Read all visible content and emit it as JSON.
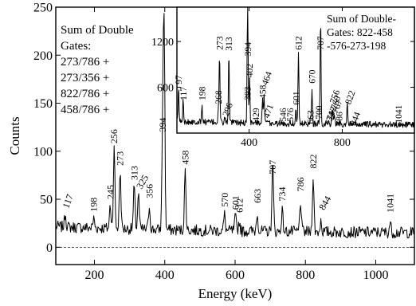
{
  "chart_data": [
    {
      "type": "line",
      "xlabel": "Energy (keV)",
      "ylabel": "Counts",
      "xlim": [
        90,
        1110
      ],
      "ylim": [
        -18,
        250
      ],
      "xticks": [
        200,
        400,
        600,
        800,
        1000
      ],
      "yticks": [
        0,
        50,
        100,
        150,
        200,
        250
      ],
      "legend_lines": [
        "Sum of Double",
        "Gates:",
        "273/786 +",
        "273/356 +",
        "822/786 +",
        "458/786 +"
      ],
      "baseline": 18,
      "noise": 6,
      "peaks": [
        {
          "x": 117,
          "y": 32
        },
        {
          "x": 198,
          "y": 28
        },
        {
          "x": 245,
          "y": 42
        },
        {
          "x": 256,
          "y": 101
        },
        {
          "x": 273,
          "y": 78
        },
        {
          "x": 313,
          "y": 62
        },
        {
          "x": 325,
          "y": 55
        },
        {
          "x": 356,
          "y": 43
        },
        {
          "x": 394,
          "y": 113
        },
        {
          "x": 398,
          "y": 228
        },
        {
          "x": 458,
          "y": 79
        },
        {
          "x": 570,
          "y": 35
        },
        {
          "x": 601,
          "y": 32
        },
        {
          "x": 612,
          "y": 28
        },
        {
          "x": 663,
          "y": 38
        },
        {
          "x": 707,
          "y": 90
        },
        {
          "x": 734,
          "y": 40
        },
        {
          "x": 786,
          "y": 50
        },
        {
          "x": 822,
          "y": 74
        },
        {
          "x": 844,
          "y": 30
        },
        {
          "x": 1041,
          "y": 28
        }
      ],
      "labels": [
        {
          "text": "117",
          "x": 117,
          "y": 40,
          "rotate": -70
        },
        {
          "text": "198",
          "x": 198,
          "y": 37,
          "rotate": -90
        },
        {
          "text": "245",
          "x": 245,
          "y": 50,
          "rotate": -90
        },
        {
          "text": "256",
          "x": 256,
          "y": 108,
          "rotate": -90
        },
        {
          "text": "273",
          "x": 273,
          "y": 85,
          "rotate": -90
        },
        {
          "text": "313",
          "x": 313,
          "y": 70,
          "rotate": -90
        },
        {
          "text": "325",
          "x": 325,
          "y": 60,
          "rotate": -60
        },
        {
          "text": "356",
          "x": 356,
          "y": 51,
          "rotate": -90
        },
        {
          "text": "394",
          "x": 394,
          "y": 120,
          "rotate": -90
        },
        {
          "text": "458",
          "x": 458,
          "y": 86,
          "rotate": -90
        },
        {
          "text": "570",
          "x": 570,
          "y": 42,
          "rotate": -90
        },
        {
          "text": "601",
          "x": 601,
          "y": 39,
          "rotate": -90
        },
        {
          "text": "612",
          "x": 612,
          "y": 36,
          "rotate": -90
        },
        {
          "text": "663",
          "x": 663,
          "y": 46,
          "rotate": -90
        },
        {
          "text": "707",
          "x": 707,
          "y": 76,
          "rotate": -90
        },
        {
          "text": "734",
          "x": 734,
          "y": 48,
          "rotate": -90
        },
        {
          "text": "786",
          "x": 786,
          "y": 58,
          "rotate": -90
        },
        {
          "text": "822",
          "x": 822,
          "y": 82,
          "rotate": -90
        },
        {
          "text": "844",
          "x": 844,
          "y": 38,
          "rotate": -60
        },
        {
          "text": "1041",
          "x": 1041,
          "y": 36,
          "rotate": -90
        }
      ]
    },
    {
      "type": "line",
      "xlim": [
        90,
        1110
      ],
      "ylim": [
        0,
        1650
      ],
      "xticks": [
        400,
        800
      ],
      "xtick_labels": [
        "400",
        "800"
      ],
      "yticks": [
        600,
        1200
      ],
      "legend_lines": [
        "Sum of Double-",
        "Gates: 822-458",
        "-576-273-198"
      ],
      "baseline": 130,
      "noise": 40,
      "peaks": [
        {
          "x": 97,
          "y": 560
        },
        {
          "x": 117,
          "y": 420
        },
        {
          "x": 198,
          "y": 330
        },
        {
          "x": 268,
          "y": 300
        },
        {
          "x": 273,
          "y": 1010
        },
        {
          "x": 296,
          "y": 200
        },
        {
          "x": 313,
          "y": 1060
        },
        {
          "x": 393,
          "y": 500
        },
        {
          "x": 394,
          "y": 1510
        },
        {
          "x": 402,
          "y": 700
        },
        {
          "x": 429,
          "y": 140
        },
        {
          "x": 458,
          "y": 420
        },
        {
          "x": 464,
          "y": 500
        },
        {
          "x": 471,
          "y": 160
        },
        {
          "x": 546,
          "y": 120
        },
        {
          "x": 576,
          "y": 150
        },
        {
          "x": 601,
          "y": 340
        },
        {
          "x": 612,
          "y": 1040
        },
        {
          "x": 663,
          "y": 200
        },
        {
          "x": 670,
          "y": 620
        },
        {
          "x": 700,
          "y": 160
        },
        {
          "x": 707,
          "y": 1530
        },
        {
          "x": 734,
          "y": 160
        },
        {
          "x": 742,
          "y": 160
        },
        {
          "x": 756,
          "y": 280
        },
        {
          "x": 760,
          "y": 260
        },
        {
          "x": 767,
          "y": 230
        },
        {
          "x": 786,
          "y": 160
        },
        {
          "x": 822,
          "y": 430
        },
        {
          "x": 844,
          "y": 110
        },
        {
          "x": 1041,
          "y": 120
        }
      ],
      "labels": [
        {
          "text": "97",
          "x": 97,
          "y": 640,
          "rotate": -90
        },
        {
          "text": "117",
          "x": 117,
          "y": 430,
          "rotate": -90
        },
        {
          "text": "198",
          "x": 198,
          "y": 430,
          "rotate": -90
        },
        {
          "text": "268",
          "x": 268,
          "y": 380,
          "rotate": -90
        },
        {
          "text": "273",
          "x": 273,
          "y": 1090,
          "rotate": -90
        },
        {
          "text": "296",
          "x": 296,
          "y": 210,
          "rotate": -70
        },
        {
          "text": "313",
          "x": 313,
          "y": 1080,
          "rotate": -90
        },
        {
          "text": "393",
          "x": 393,
          "y": 430,
          "rotate": -90
        },
        {
          "text": "394",
          "x": 394,
          "y": 1010,
          "rotate": -90
        },
        {
          "text": "402",
          "x": 402,
          "y": 730,
          "rotate": -90
        },
        {
          "text": "429",
          "x": 429,
          "y": 150,
          "rotate": -90
        },
        {
          "text": "458",
          "x": 458,
          "y": 450,
          "rotate": -90
        },
        {
          "text": "464",
          "x": 464,
          "y": 620,
          "rotate": -70
        },
        {
          "text": "471",
          "x": 471,
          "y": 190,
          "rotate": -70
        },
        {
          "text": "546",
          "x": 546,
          "y": 150,
          "rotate": -90
        },
        {
          "text": "576",
          "x": 576,
          "y": 150,
          "rotate": -90
        },
        {
          "text": "601",
          "x": 601,
          "y": 370,
          "rotate": -90
        },
        {
          "text": "612",
          "x": 612,
          "y": 1090,
          "rotate": -90
        },
        {
          "text": "663",
          "x": 663,
          "y": 120,
          "rotate": -90
        },
        {
          "text": "670",
          "x": 670,
          "y": 650,
          "rotate": -90
        },
        {
          "text": "700",
          "x": 700,
          "y": 180,
          "rotate": -90
        },
        {
          "text": "707",
          "x": 707,
          "y": 1090,
          "rotate": -90
        },
        {
          "text": "734",
          "x": 734,
          "y": 90,
          "rotate": -70
        },
        {
          "text": "742",
          "x": 742,
          "y": 160,
          "rotate": -70
        },
        {
          "text": "756",
          "x": 756,
          "y": 380,
          "rotate": -70
        },
        {
          "text": "760",
          "x": 760,
          "y": 300,
          "rotate": -70
        },
        {
          "text": "767",
          "x": 767,
          "y": 250,
          "rotate": -70
        },
        {
          "text": "786",
          "x": 786,
          "y": 100,
          "rotate": -90
        },
        {
          "text": "822",
          "x": 822,
          "y": 370,
          "rotate": -70
        },
        {
          "text": "844",
          "x": 844,
          "y": 90,
          "rotate": -70
        },
        {
          "text": "1041",
          "x": 1041,
          "y": 130,
          "rotate": -90
        }
      ]
    }
  ]
}
